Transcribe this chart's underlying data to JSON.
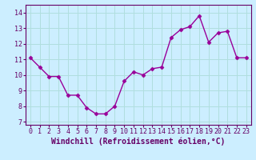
{
  "x": [
    0,
    1,
    2,
    3,
    4,
    5,
    6,
    7,
    8,
    9,
    10,
    11,
    12,
    13,
    14,
    15,
    16,
    17,
    18,
    19,
    20,
    21,
    22,
    23
  ],
  "y": [
    11.1,
    10.5,
    9.9,
    9.9,
    8.7,
    8.7,
    7.9,
    7.5,
    7.5,
    8.0,
    9.6,
    10.2,
    10.0,
    10.4,
    10.5,
    12.4,
    12.9,
    13.1,
    13.8,
    12.1,
    12.7,
    12.8,
    11.1,
    11.1
  ],
  "line_color": "#990099",
  "marker": "D",
  "marker_size": 2.5,
  "bg_color": "#cceeff",
  "grid_color": "#aadddd",
  "xlabel": "Windchill (Refroidissement éolien,°C)",
  "xlim": [
    -0.5,
    23.5
  ],
  "ylim": [
    6.8,
    14.5
  ],
  "yticks": [
    7,
    8,
    9,
    10,
    11,
    12,
    13,
    14
  ],
  "xticks": [
    0,
    1,
    2,
    3,
    4,
    5,
    6,
    7,
    8,
    9,
    10,
    11,
    12,
    13,
    14,
    15,
    16,
    17,
    18,
    19,
    20,
    21,
    22,
    23
  ],
  "xlabel_fontsize": 7,
  "tick_fontsize": 6,
  "linewidth": 1.0,
  "spine_color": "#660066"
}
